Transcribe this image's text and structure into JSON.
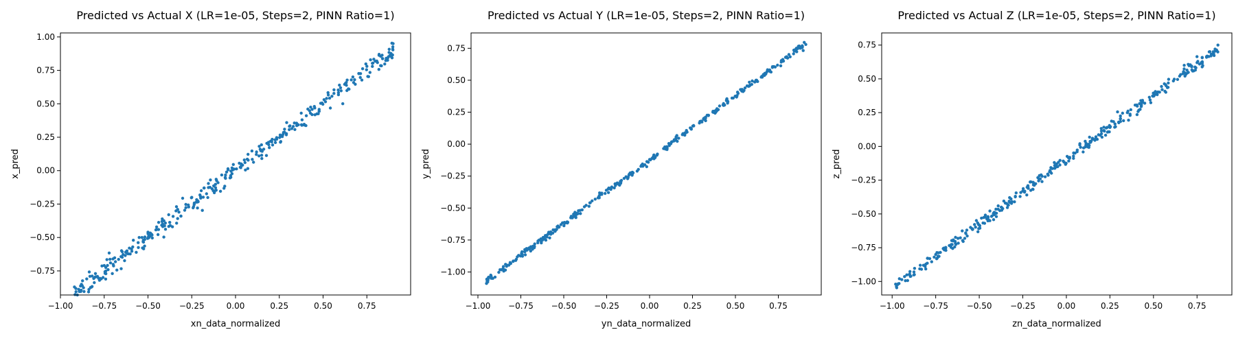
{
  "chart_data": [
    {
      "type": "scatter",
      "title": "Predicted vs Actual X (LR=1e-05, Steps=2, PINN Ratio=1)",
      "xlabel": "xn_data_normalized",
      "ylabel": "x_pred",
      "xlim": [
        -1.0,
        1.0
      ],
      "ylim": [
        -0.93,
        1.03
      ],
      "xticks": [
        -1.0,
        -0.75,
        -0.5,
        -0.25,
        0.0,
        0.25,
        0.5,
        0.75
      ],
      "xtick_labels": [
        "−1.00",
        "−0.75",
        "−0.50",
        "−0.25",
        "0.00",
        "0.25",
        "0.50",
        "0.75"
      ],
      "yticks": [
        -0.75,
        -0.5,
        -0.25,
        0.0,
        0.25,
        0.5,
        0.75,
        1.0
      ],
      "ytick_labels": [
        "−0.75",
        "−0.50",
        "−0.25",
        "0.00",
        "0.25",
        "0.50",
        "0.75",
        "1.00"
      ],
      "color": "#1f77b4",
      "fit": {
        "x_range": [
          -0.92,
          0.9
        ],
        "slope": 1.0,
        "intercept": 0.0,
        "noise": 0.032
      },
      "points": [
        [
          -0.92,
          -0.87
        ],
        [
          -0.88,
          -0.85
        ],
        [
          -0.85,
          -0.81
        ],
        [
          -0.8,
          -0.77
        ],
        [
          -0.75,
          -0.71
        ],
        [
          -0.7,
          -0.66
        ],
        [
          -0.62,
          -0.6
        ],
        [
          -0.55,
          -0.5
        ],
        [
          -0.5,
          -0.46
        ],
        [
          -0.42,
          -0.38
        ],
        [
          -0.33,
          -0.29
        ],
        [
          -0.25,
          -0.2
        ],
        [
          -0.18,
          -0.13
        ],
        [
          -0.1,
          -0.09
        ],
        [
          -0.02,
          0.02
        ],
        [
          0.05,
          0.08
        ],
        [
          0.12,
          0.14
        ],
        [
          0.2,
          0.22
        ],
        [
          0.28,
          0.31
        ],
        [
          0.35,
          0.34
        ],
        [
          0.45,
          0.48
        ],
        [
          0.52,
          0.54
        ],
        [
          0.6,
          0.62
        ],
        [
          0.68,
          0.68
        ],
        [
          0.75,
          0.78
        ],
        [
          0.82,
          0.87
        ],
        [
          0.9,
          0.95
        ]
      ]
    },
    {
      "type": "scatter",
      "title": "Predicted vs Actual Y (LR=1e-05, Steps=2, PINN Ratio=1)",
      "xlabel": "yn_data_normalized",
      "ylabel": "y_pred",
      "xlim": [
        -1.04,
        1.0
      ],
      "ylim": [
        -1.18,
        0.87
      ],
      "xticks": [
        -1.0,
        -0.75,
        -0.5,
        -0.25,
        0.0,
        0.25,
        0.5,
        0.75
      ],
      "xtick_labels": [
        "−1.00",
        "−0.75",
        "−0.50",
        "−0.25",
        "0.00",
        "0.25",
        "0.50",
        "0.75"
      ],
      "yticks": [
        -1.0,
        -0.75,
        -0.5,
        -0.25,
        0.0,
        0.25,
        0.5,
        0.75
      ],
      "ytick_labels": [
        "−1.00",
        "−0.75",
        "−0.50",
        "−0.25",
        "0.00",
        "0.25",
        "0.50",
        "0.75"
      ],
      "color": "#1f77b4",
      "fit": {
        "x_range": [
          -0.95,
          0.91
        ],
        "slope": 1.0,
        "intercept": -0.12,
        "noise": 0.012
      },
      "points": [
        [
          -0.95,
          -1.09
        ],
        [
          -0.9,
          -1.04
        ],
        [
          -0.85,
          -0.98
        ],
        [
          -0.78,
          -0.91
        ],
        [
          -0.7,
          -0.82
        ],
        [
          -0.62,
          -0.73
        ],
        [
          -0.55,
          -0.67
        ],
        [
          -0.45,
          -0.57
        ],
        [
          -0.38,
          -0.49
        ],
        [
          -0.3,
          -0.42
        ],
        [
          -0.2,
          -0.31
        ],
        [
          -0.1,
          -0.22
        ],
        [
          0.0,
          -0.12
        ],
        [
          0.1,
          -0.02
        ],
        [
          0.2,
          0.08
        ],
        [
          0.3,
          0.18
        ],
        [
          0.4,
          0.27
        ],
        [
          0.48,
          0.36
        ],
        [
          0.55,
          0.42
        ],
        [
          0.62,
          0.5
        ],
        [
          0.7,
          0.58
        ],
        [
          0.78,
          0.65
        ],
        [
          0.85,
          0.74
        ],
        [
          0.91,
          0.78
        ]
      ]
    },
    {
      "type": "scatter",
      "title": "Predicted vs Actual Z (LR=1e-05, Steps=2, PINN Ratio=1)",
      "xlabel": "zn_data_normalized",
      "ylabel": "z_pred",
      "xlim": [
        -1.06,
        0.95
      ],
      "ylim": [
        -1.1,
        0.84
      ],
      "xticks": [
        -1.0,
        -0.75,
        -0.5,
        -0.25,
        0.0,
        0.25,
        0.5,
        0.75
      ],
      "xtick_labels": [
        "−1.00",
        "−0.75",
        "−0.50",
        "−0.25",
        "0.00",
        "0.25",
        "0.50",
        "0.75"
      ],
      "yticks": [
        -1.0,
        -0.75,
        -0.5,
        -0.25,
        0.0,
        0.25,
        0.5,
        0.75
      ],
      "ytick_labels": [
        "−1.00",
        "−0.75",
        "−0.50",
        "−0.25",
        "0.00",
        "0.25",
        "0.50",
        "0.75"
      ],
      "color": "#1f77b4",
      "fit": {
        "x_range": [
          -0.98,
          0.87
        ],
        "slope": 0.95,
        "intercept": -0.1,
        "noise": 0.022
      },
      "points": [
        [
          -0.98,
          -1.02
        ],
        [
          -0.9,
          -0.95
        ],
        [
          -0.82,
          -0.88
        ],
        [
          -0.75,
          -0.8
        ],
        [
          -0.65,
          -0.7
        ],
        [
          -0.55,
          -0.6
        ],
        [
          -0.45,
          -0.52
        ],
        [
          -0.35,
          -0.42
        ],
        [
          -0.25,
          -0.33
        ],
        [
          -0.15,
          -0.24
        ],
        [
          -0.05,
          -0.15
        ],
        [
          0.05,
          -0.05
        ],
        [
          0.15,
          0.06
        ],
        [
          0.25,
          0.14
        ],
        [
          0.35,
          0.25
        ],
        [
          0.45,
          0.32
        ],
        [
          0.55,
          0.42
        ],
        [
          0.65,
          0.52
        ],
        [
          0.75,
          0.62
        ],
        [
          0.82,
          0.7
        ],
        [
          0.87,
          0.75
        ]
      ]
    }
  ]
}
